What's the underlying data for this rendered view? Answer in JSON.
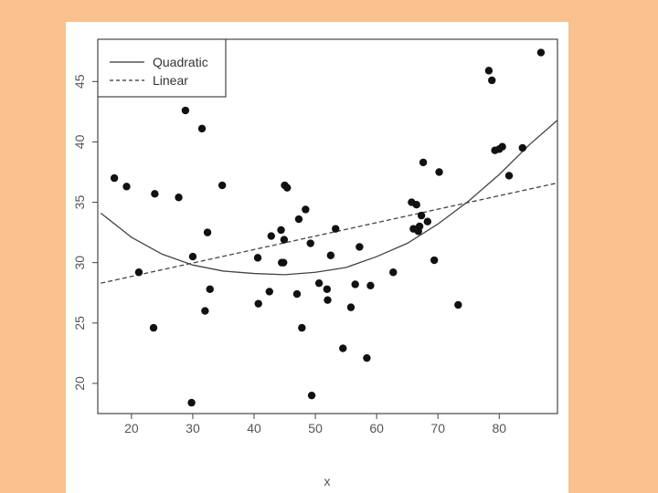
{
  "chart_data": {
    "type": "scatter",
    "xlabel": "x",
    "ylabel": "",
    "xlim": [
      14.5,
      89.5
    ],
    "ylim": [
      17.5,
      48.5
    ],
    "xticks": [
      20,
      30,
      40,
      50,
      60,
      70,
      80
    ],
    "yticks": [
      20,
      25,
      30,
      35,
      40,
      45
    ],
    "grid": false,
    "legend_position": "top-left",
    "legend": [
      {
        "label": "Quadratic",
        "style": "solid"
      },
      {
        "label": "Linear",
        "style": "dashed"
      }
    ],
    "series": [
      {
        "type": "scatter",
        "color": "#111111",
        "points": [
          [
            17.2,
            37.0
          ],
          [
            19.2,
            36.3
          ],
          [
            21.2,
            29.2
          ],
          [
            23.6,
            24.6
          ],
          [
            23.8,
            35.7
          ],
          [
            27.7,
            35.4
          ],
          [
            28.8,
            42.6
          ],
          [
            29.8,
            18.4
          ],
          [
            30.0,
            30.5
          ],
          [
            31.5,
            41.1
          ],
          [
            32.0,
            26.0
          ],
          [
            32.4,
            32.5
          ],
          [
            32.8,
            27.8
          ],
          [
            34.8,
            36.4
          ],
          [
            40.6,
            30.4
          ],
          [
            40.7,
            26.6
          ],
          [
            42.5,
            27.6
          ],
          [
            42.8,
            32.2
          ],
          [
            44.4,
            32.7
          ],
          [
            44.5,
            30.0
          ],
          [
            44.8,
            30.0
          ],
          [
            44.9,
            31.9
          ],
          [
            45.0,
            36.4
          ],
          [
            45.4,
            36.2
          ],
          [
            47.0,
            27.4
          ],
          [
            47.3,
            33.6
          ],
          [
            47.8,
            24.6
          ],
          [
            48.4,
            34.4
          ],
          [
            49.2,
            31.6
          ],
          [
            49.4,
            19.0
          ],
          [
            50.6,
            28.3
          ],
          [
            51.9,
            27.8
          ],
          [
            52.0,
            26.9
          ],
          [
            52.5,
            30.6
          ],
          [
            53.3,
            32.8
          ],
          [
            54.5,
            22.9
          ],
          [
            55.8,
            26.3
          ],
          [
            56.5,
            28.2
          ],
          [
            57.2,
            31.3
          ],
          [
            58.4,
            22.1
          ],
          [
            59.0,
            28.1
          ],
          [
            62.7,
            29.2
          ],
          [
            65.7,
            35.0
          ],
          [
            66.0,
            32.8
          ],
          [
            66.5,
            34.8
          ],
          [
            66.8,
            32.6
          ],
          [
            67.0,
            33.0
          ],
          [
            67.3,
            33.9
          ],
          [
            67.6,
            38.3
          ],
          [
            68.3,
            33.4
          ],
          [
            69.4,
            30.2
          ],
          [
            70.2,
            37.5
          ],
          [
            73.3,
            26.5
          ],
          [
            78.3,
            45.9
          ],
          [
            78.8,
            45.1
          ],
          [
            79.3,
            39.3
          ],
          [
            80.0,
            39.4
          ],
          [
            80.5,
            39.6
          ],
          [
            81.6,
            37.2
          ],
          [
            83.8,
            39.5
          ],
          [
            86.8,
            47.4
          ]
        ]
      },
      {
        "type": "line",
        "name": "Quadratic",
        "style": "solid",
        "color": "#444444",
        "x": [
          15,
          20,
          25,
          30,
          35,
          40,
          45,
          50,
          55,
          60,
          65,
          70,
          75,
          80,
          85,
          89.5
        ],
        "y": [
          34.1,
          32.1,
          30.7,
          29.8,
          29.3,
          29.1,
          29.0,
          29.2,
          29.6,
          30.5,
          31.6,
          33.2,
          35.1,
          37.3,
          39.8,
          41.8
        ]
      },
      {
        "type": "line",
        "name": "Linear",
        "style": "dashed",
        "color": "#444444",
        "x": [
          15,
          89.5
        ],
        "y": [
          28.3,
          36.6
        ]
      }
    ]
  }
}
